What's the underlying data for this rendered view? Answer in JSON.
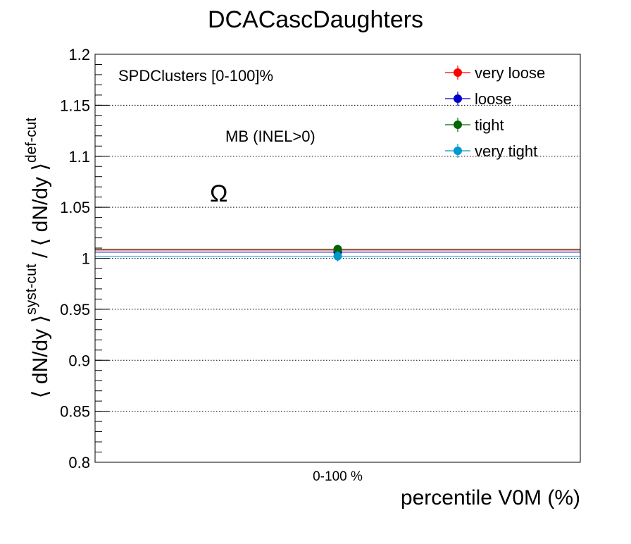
{
  "chart_data": {
    "type": "scatter",
    "title": "DCACascDaughters",
    "xlabel": "percentile V0M (%)",
    "ylabel": {
      "part1": "⟨ dN/dy ⟩",
      "sup1": "syst-cut",
      "part2": " / ⟨ dN/dy ⟩",
      "sup2": "def-cut"
    },
    "categories": [
      "0-100 %"
    ],
    "ylim": [
      0.8,
      1.2
    ],
    "yticks": [
      "0.8",
      "0.85",
      "0.9",
      "0.95",
      "1",
      "1.05",
      "1.1",
      "1.15",
      "1.2"
    ],
    "grid": "y-dotted",
    "legend_position": "top-right",
    "annotations": {
      "estimator": "SPDClusters [0-100]%",
      "event_class": "MB (INEL>0)",
      "particle": "Ω"
    },
    "series": [
      {
        "name": "very loose",
        "color": "#ff0000",
        "values": [
          1.008
        ],
        "errors": [
          0.004
        ]
      },
      {
        "name": "loose",
        "color": "#0000cc",
        "values": [
          1.006
        ],
        "errors": [
          0.004
        ]
      },
      {
        "name": "tight",
        "color": "#006600",
        "values": [
          1.009
        ],
        "errors": [
          0.004
        ]
      },
      {
        "name": "very tight",
        "color": "#0099cc",
        "values": [
          1.002
        ],
        "errors": [
          0.005
        ]
      }
    ],
    "reference_lines": [
      {
        "series": "very loose",
        "y": 1.008
      },
      {
        "series": "loose",
        "y": 1.006
      },
      {
        "series": "tight",
        "y": 1.009
      },
      {
        "series": "very tight",
        "y": 1.002
      }
    ]
  }
}
